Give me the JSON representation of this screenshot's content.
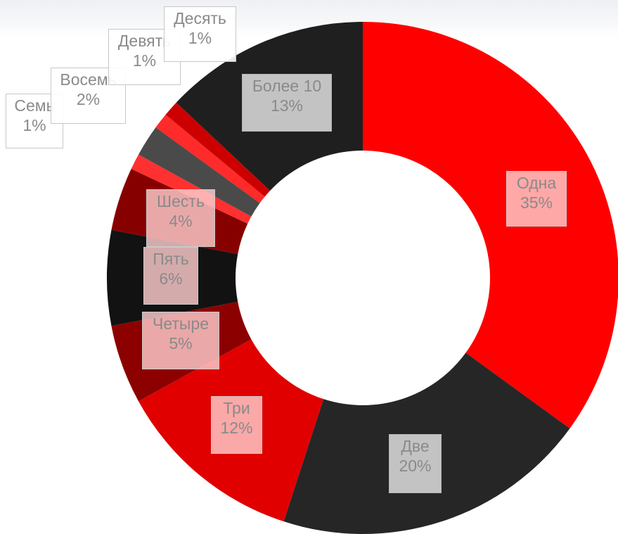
{
  "chart_data": {
    "type": "pie",
    "title": "",
    "slices": [
      {
        "label": "Одна",
        "value": 35,
        "display": "35%",
        "color": "#ff0000",
        "label_style": "light"
      },
      {
        "label": "Две",
        "value": 20,
        "display": "20%",
        "color": "#262626",
        "label_style": "grey"
      },
      {
        "label": "Три",
        "value": 12,
        "display": "12%",
        "color": "#e00000",
        "label_style": "light"
      },
      {
        "label": "Четыре",
        "value": 5,
        "display": "5%",
        "color": "#8c0000",
        "label_style": "light"
      },
      {
        "label": "Пять",
        "value": 6,
        "display": "6%",
        "color": "#121212",
        "label_style": "light"
      },
      {
        "label": "Шесть",
        "value": 4,
        "display": "4%",
        "color": "#870000",
        "label_style": "light"
      },
      {
        "label": "Семь",
        "value": 1,
        "display": "1%",
        "color": "#ff3030",
        "label_style": "white"
      },
      {
        "label": "Восемь",
        "value": 2,
        "display": "2%",
        "color": "#4a4a4a",
        "label_style": "white"
      },
      {
        "label": "Девять",
        "value": 1,
        "display": "1%",
        "color": "#ff2a2a",
        "label_style": "white"
      },
      {
        "label": "Десять",
        "value": 1,
        "display": "1%",
        "color": "#cc0000",
        "label_style": "white"
      },
      {
        "label": "Более 10",
        "value": 13,
        "display": "13%",
        "color": "#1f1f1f",
        "label_style": "grey"
      }
    ],
    "donut": true,
    "start": "top",
    "direction": "clockwise",
    "legend": "none"
  }
}
